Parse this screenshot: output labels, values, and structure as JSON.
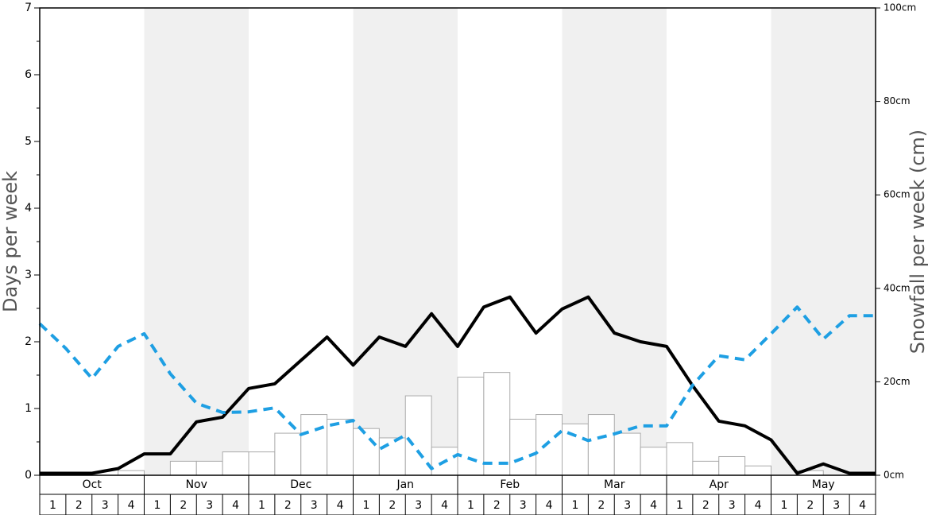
{
  "chart_data": {
    "type": "bar",
    "y_label": "Days per week",
    "y2_label": "Snowfall per week (cm)",
    "months": [
      "Oct",
      "Nov",
      "Dec",
      "Jan",
      "Feb",
      "Mar",
      "Apr",
      "May"
    ],
    "weeks": [
      1,
      2,
      3,
      4
    ],
    "ylim": [
      0,
      7
    ],
    "yticks": [
      0,
      1,
      2,
      3,
      4,
      5,
      6,
      7
    ],
    "y2lim": [
      0,
      100
    ],
    "y2ticks": [
      {
        "value": 0,
        "label": "0cm"
      },
      {
        "value": 20,
        "label": "20cm"
      },
      {
        "value": 40,
        "label": "40cm"
      },
      {
        "value": 60,
        "label": "60cm"
      },
      {
        "value": 80,
        "label": "80cm"
      },
      {
        "value": 100,
        "label": "100cm"
      }
    ],
    "series": [
      {
        "type": "bar",
        "axis": "y2",
        "color": "#ffffff",
        "values": [
          0,
          0,
          0,
          1,
          0,
          3,
          3,
          5,
          5,
          9,
          13,
          12,
          10,
          8,
          17,
          6,
          21,
          22,
          12,
          13,
          11,
          13,
          9,
          6,
          7,
          3,
          4,
          2,
          0,
          1,
          0,
          0
        ]
      },
      {
        "type": "line",
        "color": "#000000",
        "dashed": false,
        "values": [
          0.03,
          0.03,
          0.03,
          0.1,
          0.32,
          0.32,
          0.8,
          0.87,
          1.3,
          1.37,
          1.72,
          2.07,
          1.65,
          2.07,
          1.93,
          2.42,
          1.93,
          2.52,
          2.67,
          2.13,
          2.49,
          2.67,
          2.13,
          2.0,
          1.93,
          1.34,
          0.81,
          0.74,
          0.53,
          0.03,
          0.17,
          0.03
        ]
      },
      {
        "type": "line",
        "color": "#1e9fe3",
        "dashed": true,
        "values": [
          2.27,
          1.9,
          1.45,
          1.93,
          2.12,
          1.52,
          1.08,
          0.94,
          0.95,
          1.01,
          0.61,
          0.74,
          0.82,
          0.39,
          0.6,
          0.1,
          0.31,
          0.18,
          0.18,
          0.33,
          0.67,
          0.52,
          0.62,
          0.74,
          0.74,
          1.35,
          1.79,
          1.73,
          2.12,
          2.52,
          2.04,
          2.39
        ]
      }
    ]
  }
}
